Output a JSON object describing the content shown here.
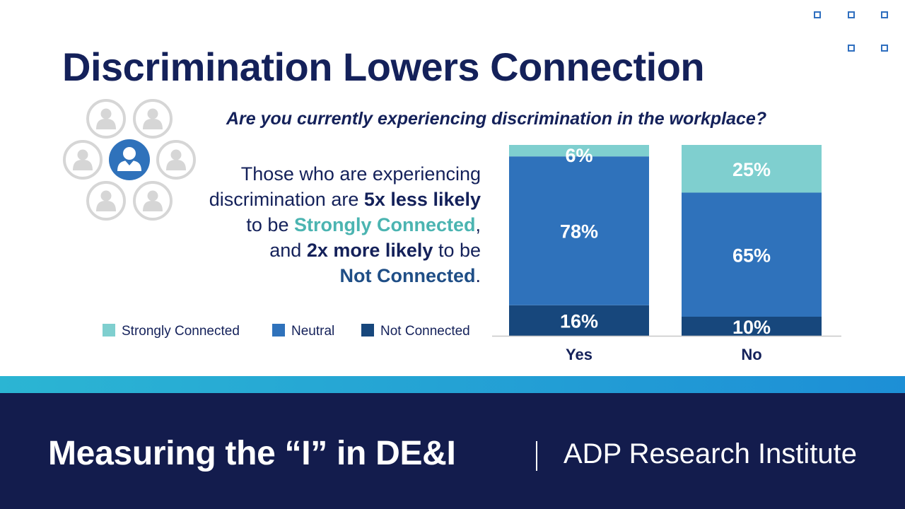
{
  "title": "Discrimination Lowers Connection",
  "question": "Are you currently experiencing discrimination in the workplace?",
  "body": {
    "line1": "Those who are experiencing",
    "line2_a": "discrimination are ",
    "line2_b": "5x less likely",
    "line3_a": "to be ",
    "line3_b": "Strongly Connected",
    "line3_c": ",",
    "line4_a": "and ",
    "line4_b": "2x more likely",
    "line4_c": " to be",
    "line5_a": "Not Connected",
    "line5_b": "."
  },
  "colors": {
    "strongly_connected": "#7fcfcf",
    "neutral": "#2f72bb",
    "not_connected": "#17477c",
    "title": "#14215a",
    "accent_teal": "#4bb4b1",
    "footer_bg": "#131c4d"
  },
  "chart_data": {
    "type": "bar",
    "stacked": true,
    "categories": [
      "Yes",
      "No"
    ],
    "series": [
      {
        "name": "Not Connected",
        "values": [
          16,
          10
        ],
        "labels": [
          "16%",
          "10%"
        ]
      },
      {
        "name": "Neutral",
        "values": [
          78,
          65
        ],
        "labels": [
          "78%",
          "65%"
        ]
      },
      {
        "name": "Strongly Connected",
        "values": [
          6,
          25
        ],
        "labels": [
          "6%",
          "25%"
        ]
      }
    ],
    "ylim": [
      0,
      100
    ],
    "legend_position": "bottom-left",
    "grid": false
  },
  "legend": [
    {
      "label": "Strongly Connected",
      "color": "#7fcfcf"
    },
    {
      "label": "Neutral",
      "color": "#2f72bb"
    },
    {
      "label": "Not Connected",
      "color": "#17477c"
    }
  ],
  "footer": {
    "title": "Measuring the “I” in DE&I",
    "org": "ADP Research Institute"
  },
  "icons": {
    "people_cluster": "people-network-icon",
    "decoration": "square-dots-decoration"
  }
}
